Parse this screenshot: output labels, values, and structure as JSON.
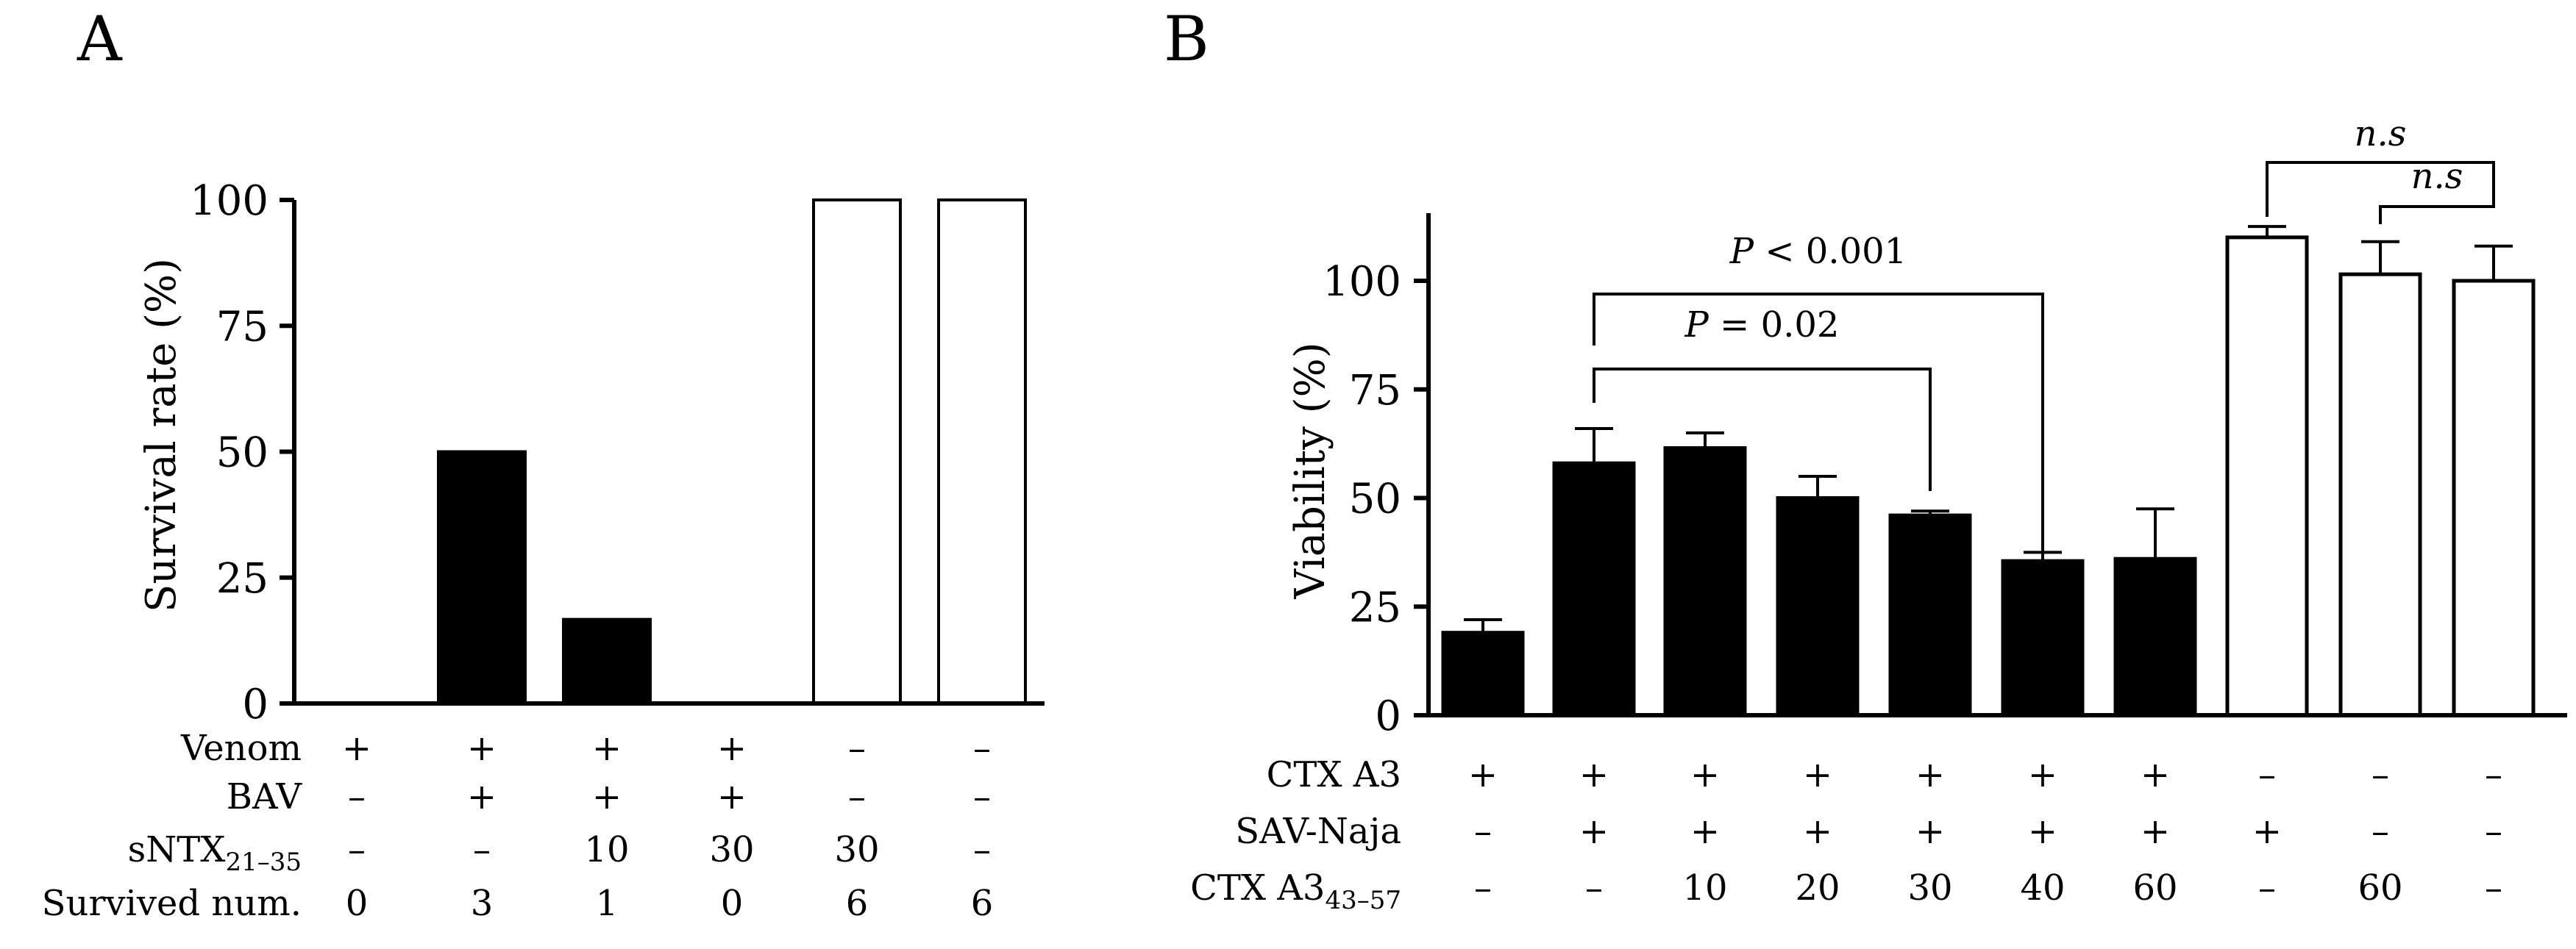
{
  "chart_data": [
    {
      "panel": "A",
      "type": "bar",
      "ylabel": "Survival rate (%)",
      "ylim": [
        0,
        100
      ],
      "yticks": [
        0,
        25,
        50,
        75,
        100
      ],
      "values": [
        0,
        50,
        16.7,
        0,
        100,
        100
      ],
      "bar_fill": [
        "#000000",
        "#000000",
        "#000000",
        "#000000",
        "#ffffff",
        "#ffffff"
      ],
      "conditions": [
        {
          "label": "Venom",
          "values": [
            "+",
            "+",
            "+",
            "+",
            "–",
            "–"
          ]
        },
        {
          "label": "BAV",
          "values": [
            "–",
            "+",
            "+",
            "+",
            "–",
            "–"
          ]
        },
        {
          "label": "sNTX",
          "subscript": "21–35",
          "values": [
            "–",
            "–",
            "10",
            "30",
            "30",
            "–"
          ]
        },
        {
          "label": "Survived num.",
          "values": [
            "0",
            "3",
            "1",
            "0",
            "6",
            "6"
          ]
        }
      ]
    },
    {
      "panel": "B",
      "type": "bar",
      "ylabel": "Viability (%)",
      "ylim": [
        0,
        120
      ],
      "yticks": [
        0,
        25,
        50,
        75,
        100
      ],
      "values": [
        19,
        58,
        61.5,
        50,
        46,
        35.5,
        36,
        110,
        101.5,
        100
      ],
      "errors": [
        3,
        8,
        3.5,
        5,
        1,
        2,
        11.5,
        2.5,
        7.5,
        8
      ],
      "bar_fill": [
        "#000000",
        "#000000",
        "#000000",
        "#000000",
        "#000000",
        "#000000",
        "#000000",
        "#ffffff",
        "#ffffff",
        "#ffffff"
      ],
      "conditions": [
        {
          "label": "CTX A3",
          "values": [
            "+",
            "+",
            "+",
            "+",
            "+",
            "+",
            "+",
            "–",
            "–",
            "–"
          ]
        },
        {
          "label": "SAV-Naja",
          "values": [
            "–",
            "+",
            "+",
            "+",
            "+",
            "+",
            "+",
            "+",
            "–",
            "–"
          ]
        },
        {
          "label": "CTX A3",
          "subscript": "43–57",
          "values": [
            "–",
            "–",
            "10",
            "20",
            "30",
            "40",
            "60",
            "–",
            "60",
            "–"
          ]
        }
      ],
      "annotations": [
        {
          "text_italic": "P",
          "text_rest": " < 0.001",
          "from": 1,
          "to": 5
        },
        {
          "text_italic": "P",
          "text_rest": " = 0.02",
          "from": 1,
          "to": 4
        },
        {
          "text": "n.s",
          "from": 7,
          "to": 9
        },
        {
          "text": "n.s",
          "from": 8,
          "to": 9
        }
      ]
    }
  ],
  "panels": {
    "a_letter": "A",
    "b_letter": "B"
  }
}
